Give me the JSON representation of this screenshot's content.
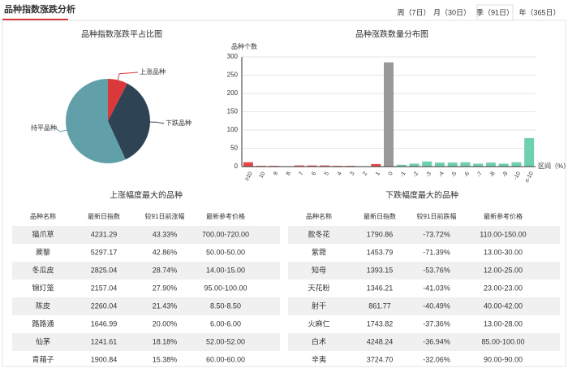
{
  "header": {
    "title": "品种指数涨跌分析",
    "tabs": [
      "周（7日）",
      "月（30日）",
      "季（91日）",
      "年（365日）"
    ],
    "active_tab": 2
  },
  "chart_data": [
    {
      "type": "pie",
      "title": "品种指数涨跌平占比图",
      "categories": [
        "上涨品种",
        "下跌品种",
        "持平品种"
      ],
      "values": [
        38,
        178,
        285
      ],
      "colors": [
        "#d9393b",
        "#2e4354",
        "#61a0a8"
      ]
    },
    {
      "type": "bar",
      "title": "品种涨跌数量分布图",
      "y_label": "品种个数",
      "x_label": "区间（%）",
      "categories": [
        "≥10",
        "10",
        "9",
        "8",
        "7",
        "6",
        "5",
        "4",
        "3",
        "2",
        "1",
        "0",
        "-1",
        "-2",
        "-3",
        "-4",
        "-5",
        "-6",
        "-7",
        "-8",
        "-9",
        "-10",
        "≤-10"
      ],
      "values": [
        12,
        2,
        2,
        1,
        3,
        3,
        3,
        2,
        2,
        1,
        7,
        285,
        5,
        8,
        14,
        11,
        11,
        12,
        8,
        11,
        8,
        12,
        78
      ],
      "colors": [
        "#e5474b",
        "#e5474b",
        "#e5474b",
        "#e5474b",
        "#e5474b",
        "#e5474b",
        "#e5474b",
        "#e5474b",
        "#e5474b",
        "#e5474b",
        "#e5474b",
        "#999999",
        "#6fd0ae",
        "#6fd0ae",
        "#6fd0ae",
        "#6fd0ae",
        "#6fd0ae",
        "#6fd0ae",
        "#6fd0ae",
        "#6fd0ae",
        "#6fd0ae",
        "#6fd0ae",
        "#6fd0ae"
      ],
      "ylim": [
        0,
        300
      ],
      "yticks": [
        0,
        50,
        100,
        150,
        200,
        250,
        300
      ],
      "grid": true
    }
  ],
  "tables": [
    {
      "title": "上涨幅度最大的品种",
      "change_color": "#e0282e",
      "columns": [
        "品种名称",
        "最新日指数",
        "较91日前涨幅",
        "最新参考价格"
      ],
      "rows": [
        [
          "猫爪草",
          "4231.29",
          "43.33%",
          "700.00-720.00"
        ],
        [
          "蒺藜",
          "5297.17",
          "42.86%",
          "50.00-50.00"
        ],
        [
          "冬瓜皮",
          "2825.04",
          "28.74%",
          "14.00-15.00"
        ],
        [
          "锦灯笼",
          "2157.04",
          "27.90%",
          "95.00-100.00"
        ],
        [
          "陈皮",
          "2260.04",
          "21.43%",
          "8.50-8.50"
        ],
        [
          "路路通",
          "1646.99",
          "20.00%",
          "6.00-6.00"
        ],
        [
          "仙茅",
          "1241.61",
          "18.18%",
          "52.00-52.00"
        ],
        [
          "青葙子",
          "1900.84",
          "15.38%",
          "60.00-60.00"
        ]
      ]
    },
    {
      "title": "下跌幅度最大的品种",
      "change_color": "#1f8f2e",
      "columns": [
        "品种名称",
        "最新日指数",
        "较91日前跌幅",
        "最新参考价格"
      ],
      "rows": [
        [
          "款冬花",
          "1790.86",
          "-73.72%",
          "110.00-150.00"
        ],
        [
          "紫菀",
          "1453.79",
          "-71.39%",
          "13.00-30.00"
        ],
        [
          "知母",
          "1393.15",
          "-53.76%",
          "12.00-25.00"
        ],
        [
          "天花粉",
          "1346.21",
          "-41.03%",
          "23.00-23.00"
        ],
        [
          "射干",
          "861.77",
          "-40.49%",
          "40.00-42.00"
        ],
        [
          "火麻仁",
          "1743.82",
          "-37.36%",
          "13.00-28.00"
        ],
        [
          "白术",
          "4248.24",
          "-36.94%",
          "85.00-100.00"
        ],
        [
          "辛夷",
          "3724.70",
          "-32.06%",
          "90.00-90.00"
        ]
      ]
    }
  ]
}
